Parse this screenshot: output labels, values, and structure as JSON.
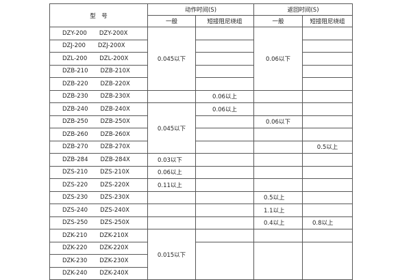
{
  "header": {
    "model": "型　号",
    "action_time": "动作时间(S)",
    "return_time": "返回时间(S)",
    "general": "一般",
    "short_damping": "短接阻尼绕组"
  },
  "rows": [
    {
      "a": "DZY-200",
      "b": "DZY-200X"
    },
    {
      "a": "DZJ-200",
      "b": "DZJ-200X"
    },
    {
      "a": "DZL-200",
      "b": "DZL-200X"
    },
    {
      "a": "DZB-210",
      "b": "DZB-210X"
    },
    {
      "a": "DZB-220",
      "b": "DZB-220X"
    },
    {
      "a": "DZB-230",
      "b": "DZB-230X"
    },
    {
      "a": "DZB-240",
      "b": "DZB-240X"
    },
    {
      "a": "DZB-250",
      "b": "DZB-250X"
    },
    {
      "a": "DZB-260",
      "b": "DZB-260X"
    },
    {
      "a": "DZB-270",
      "b": "DZB-270X"
    },
    {
      "a": "DZB-284",
      "b": "DZB-284X"
    },
    {
      "a": "DZS-210",
      "b": "DZS-210X"
    },
    {
      "a": "DZS-220",
      "b": "DZS-220X"
    },
    {
      "a": "DZS-230",
      "b": "DZS-230X"
    },
    {
      "a": "DZS-240",
      "b": "DZS-240X"
    },
    {
      "a": "DZS-250",
      "b": "DZS-250X"
    },
    {
      "a": "DZK-210",
      "b": "DZK-210X"
    },
    {
      "a": "DZK-220",
      "b": "DZK-220X"
    },
    {
      "a": "DZK-230",
      "b": "DZK-230X"
    },
    {
      "a": "DZK-240",
      "b": "DZK-240X"
    }
  ],
  "cells": [
    [
      {
        "t": "0.045以下",
        "rs": 5
      },
      {
        "t": ""
      },
      {
        "t": "0.06以下",
        "rs": 5
      },
      {
        "t": ""
      }
    ],
    [
      null,
      {
        "t": ""
      },
      null,
      {
        "t": ""
      }
    ],
    [
      null,
      {
        "t": ""
      },
      null,
      {
        "t": ""
      }
    ],
    [
      null,
      {
        "t": ""
      },
      null,
      {
        "t": ""
      }
    ],
    [
      null,
      {
        "t": ""
      },
      null,
      {
        "t": ""
      }
    ],
    [
      {
        "t": ""
      },
      {
        "t": "0.06以上"
      },
      {
        "t": ""
      },
      {
        "t": ""
      }
    ],
    [
      {
        "t": "0.045以下",
        "rs": 4
      },
      {
        "t": "0.06以上"
      },
      {
        "t": ""
      },
      {
        "t": ""
      }
    ],
    [
      null,
      {
        "t": ""
      },
      {
        "t": "0.06以下"
      },
      {
        "t": ""
      }
    ],
    [
      null,
      {
        "t": ""
      },
      {
        "t": ""
      },
      {
        "t": ""
      }
    ],
    [
      null,
      {
        "t": ""
      },
      {
        "t": ""
      },
      {
        "t": "0.5以上"
      }
    ],
    [
      {
        "t": "0.03以下",
        "left": true
      },
      {
        "t": ""
      },
      {
        "t": ""
      },
      {
        "t": ""
      }
    ],
    [
      {
        "t": "0.06以上",
        "left": true
      },
      {
        "t": ""
      },
      {
        "t": ""
      },
      {
        "t": ""
      }
    ],
    [
      {
        "t": "0.11以上",
        "left": true
      },
      {
        "t": ""
      },
      {
        "t": ""
      },
      {
        "t": ""
      }
    ],
    [
      {
        "t": ""
      },
      {
        "t": ""
      },
      {
        "t": "0.5以上",
        "left": true
      },
      {
        "t": ""
      }
    ],
    [
      {
        "t": ""
      },
      {
        "t": ""
      },
      {
        "t": "1.1以上",
        "left": true
      },
      {
        "t": ""
      }
    ],
    [
      {
        "t": ""
      },
      {
        "t": ""
      },
      {
        "t": "0.4以上",
        "left": true
      },
      {
        "t": "0.8以上",
        "left": true
      }
    ],
    [
      {
        "t": "0.015以下",
        "rs": 4
      },
      {
        "t": ""
      },
      {
        "t": ""
      },
      {
        "t": ""
      }
    ],
    [
      null,
      {
        "t": "",
        "rs": 3
      },
      {
        "t": "",
        "rs": 3
      },
      {
        "t": "",
        "rs": 3
      }
    ],
    [
      null,
      null,
      null,
      null
    ],
    [
      null,
      null,
      null,
      null
    ]
  ]
}
